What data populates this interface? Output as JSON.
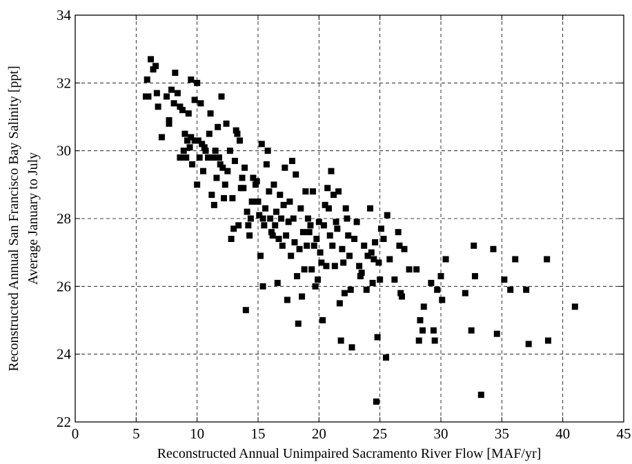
{
  "chart_data": {
    "type": "scatter",
    "title": "",
    "xlabel": "Reconstructed Annual Unimpaired Sacramento River Flow [MAF/yr]",
    "ylabel": "Reconstructed Annual San Francisco Bay Salinity [ppt]",
    "ylabel2": "Average January to July",
    "xlim": [
      0,
      45
    ],
    "ylim": [
      22,
      34
    ],
    "xticks": [
      0,
      5,
      10,
      15,
      20,
      25,
      30,
      35,
      40,
      45
    ],
    "yticks": [
      22,
      24,
      26,
      28,
      30,
      32,
      34
    ],
    "xtick_labels": [
      "0",
      "5",
      "10",
      "15",
      "20",
      "25",
      "30",
      "35",
      "40",
      "45"
    ],
    "ytick_labels": [
      "22",
      "24",
      "26",
      "28",
      "30",
      "32",
      "34"
    ],
    "grid": true,
    "marker": "square",
    "marker_color": "#000000",
    "series": [
      {
        "points": [
          [
            5.8,
            31.6
          ],
          [
            6.0,
            31.6
          ],
          [
            5.9,
            32.1
          ],
          [
            6.2,
            32.7
          ],
          [
            6.4,
            32.4
          ],
          [
            6.6,
            32.5
          ],
          [
            6.7,
            31.7
          ],
          [
            6.8,
            31.3
          ],
          [
            7.1,
            30.4
          ],
          [
            7.5,
            31.6
          ],
          [
            7.7,
            30.9
          ],
          [
            7.7,
            30.8
          ],
          [
            7.9,
            31.8
          ],
          [
            8.1,
            31.4
          ],
          [
            8.2,
            32.3
          ],
          [
            8.4,
            31.7
          ],
          [
            8.6,
            31.3
          ],
          [
            8.6,
            29.8
          ],
          [
            8.8,
            31.2
          ],
          [
            8.9,
            30.0
          ],
          [
            9.0,
            30.5
          ],
          [
            9.1,
            29.8
          ],
          [
            9.2,
            30.3
          ],
          [
            9.3,
            31.1
          ],
          [
            9.4,
            30.1
          ],
          [
            9.5,
            30.4
          ],
          [
            9.5,
            32.1
          ],
          [
            9.6,
            29.6
          ],
          [
            9.8,
            30.3
          ],
          [
            9.8,
            31.5
          ],
          [
            10.0,
            32.0
          ],
          [
            10.0,
            29.0
          ],
          [
            10.1,
            30.3
          ],
          [
            10.2,
            29.8
          ],
          [
            10.3,
            31.4
          ],
          [
            10.4,
            30.2
          ],
          [
            10.5,
            29.4
          ],
          [
            10.6,
            30.1
          ],
          [
            10.7,
            30.0
          ],
          [
            10.9,
            29.8
          ],
          [
            11.0,
            30.5
          ],
          [
            11.1,
            31.1
          ],
          [
            11.2,
            28.7
          ],
          [
            11.3,
            29.8
          ],
          [
            11.4,
            28.4
          ],
          [
            11.5,
            30.0
          ],
          [
            11.6,
            29.2
          ],
          [
            11.7,
            30.7
          ],
          [
            11.8,
            29.8
          ],
          [
            11.9,
            29.6
          ],
          [
            12.0,
            31.6
          ],
          [
            12.1,
            29.5
          ],
          [
            12.2,
            28.6
          ],
          [
            12.3,
            29.0
          ],
          [
            12.4,
            30.8
          ],
          [
            12.5,
            29.4
          ],
          [
            12.7,
            30.0
          ],
          [
            12.8,
            27.4
          ],
          [
            12.9,
            28.6
          ],
          [
            13.0,
            27.7
          ],
          [
            13.1,
            29.7
          ],
          [
            13.2,
            30.6
          ],
          [
            13.3,
            30.5
          ],
          [
            13.4,
            27.8
          ],
          [
            13.5,
            30.3
          ],
          [
            13.6,
            28.9
          ],
          [
            13.7,
            29.2
          ],
          [
            13.8,
            28.9
          ],
          [
            13.9,
            29.5
          ],
          [
            14.0,
            25.3
          ],
          [
            14.1,
            28.2
          ],
          [
            14.2,
            27.8
          ],
          [
            14.3,
            27.5
          ],
          [
            14.4,
            28.0
          ],
          [
            14.5,
            28.5
          ],
          [
            14.6,
            29.2
          ],
          [
            14.8,
            29.0
          ],
          [
            14.9,
            29.1
          ],
          [
            15.0,
            28.5
          ],
          [
            15.1,
            28.1
          ],
          [
            15.2,
            26.9
          ],
          [
            15.3,
            30.2
          ],
          [
            15.4,
            26.0
          ],
          [
            15.4,
            28.0
          ],
          [
            15.5,
            27.8
          ],
          [
            15.6,
            28.3
          ],
          [
            15.7,
            29.6
          ],
          [
            15.8,
            30.0
          ],
          [
            15.9,
            28.8
          ],
          [
            16.0,
            28.0
          ],
          [
            16.1,
            27.6
          ],
          [
            16.2,
            27.5
          ],
          [
            16.3,
            29.0
          ],
          [
            16.4,
            27.8
          ],
          [
            16.5,
            28.2
          ],
          [
            16.6,
            26.1
          ],
          [
            16.7,
            27.4
          ],
          [
            16.8,
            28.7
          ],
          [
            16.9,
            28.0
          ],
          [
            17.0,
            27.2
          ],
          [
            17.1,
            28.4
          ],
          [
            17.2,
            29.5
          ],
          [
            17.3,
            27.5
          ],
          [
            17.4,
            25.6
          ],
          [
            17.5,
            27.9
          ],
          [
            17.6,
            28.5
          ],
          [
            17.7,
            26.9
          ],
          [
            17.8,
            29.7
          ],
          [
            17.9,
            28.0
          ],
          [
            18.0,
            27.3
          ],
          [
            18.1,
            29.3
          ],
          [
            18.2,
            26.3
          ],
          [
            18.3,
            24.9
          ],
          [
            18.4,
            27.1
          ],
          [
            18.5,
            28.3
          ],
          [
            18.6,
            25.7
          ],
          [
            18.7,
            27.6
          ],
          [
            18.8,
            26.5
          ],
          [
            18.9,
            28.8
          ],
          [
            19.0,
            27.2
          ],
          [
            19.1,
            28.0
          ],
          [
            19.2,
            27.6
          ],
          [
            19.3,
            27.8
          ],
          [
            19.4,
            26.5
          ],
          [
            19.5,
            28.8
          ],
          [
            19.6,
            27.2
          ],
          [
            19.7,
            26.0
          ],
          [
            19.8,
            27.4
          ],
          [
            19.9,
            26.2
          ],
          [
            20.0,
            27.9
          ],
          [
            20.1,
            27.0
          ],
          [
            20.2,
            26.7
          ],
          [
            20.3,
            25.0
          ],
          [
            20.4,
            27.8
          ],
          [
            20.5,
            28.4
          ],
          [
            20.6,
            26.6
          ],
          [
            20.7,
            28.9
          ],
          [
            20.8,
            28.3
          ],
          [
            20.9,
            27.5
          ],
          [
            21.0,
            29.4
          ],
          [
            21.1,
            27.2
          ],
          [
            21.2,
            28.7
          ],
          [
            21.3,
            26.6
          ],
          [
            21.4,
            27.9
          ],
          [
            21.5,
            27.7
          ],
          [
            21.6,
            28.8
          ],
          [
            21.7,
            25.5
          ],
          [
            21.8,
            24.4
          ],
          [
            21.9,
            27.1
          ],
          [
            22.0,
            26.7
          ],
          [
            22.1,
            25.8
          ],
          [
            22.2,
            28.3
          ],
          [
            22.3,
            28.0
          ],
          [
            22.4,
            27.5
          ],
          [
            22.5,
            26.9
          ],
          [
            22.6,
            25.9
          ],
          [
            22.7,
            24.2
          ],
          [
            22.9,
            27.4
          ],
          [
            23.1,
            27.9
          ],
          [
            23.3,
            26.6
          ],
          [
            23.4,
            26.3
          ],
          [
            23.5,
            26.4
          ],
          [
            23.7,
            27.2
          ],
          [
            23.9,
            25.9
          ],
          [
            24.0,
            26.9
          ],
          [
            24.2,
            28.3
          ],
          [
            24.3,
            27.0
          ],
          [
            24.4,
            26.1
          ],
          [
            24.5,
            26.8
          ],
          [
            24.6,
            27.3
          ],
          [
            24.7,
            22.6
          ],
          [
            24.8,
            24.5
          ],
          [
            24.9,
            26.7
          ],
          [
            25.0,
            26.2
          ],
          [
            25.1,
            27.7
          ],
          [
            25.3,
            27.4
          ],
          [
            25.5,
            23.9
          ],
          [
            25.6,
            28.1
          ],
          [
            25.8,
            26.8
          ],
          [
            26.2,
            26.2
          ],
          [
            26.5,
            27.6
          ],
          [
            26.6,
            27.2
          ],
          [
            26.7,
            25.8
          ],
          [
            26.8,
            25.7
          ],
          [
            27.0,
            27.1
          ],
          [
            27.4,
            26.5
          ],
          [
            28.0,
            26.5
          ],
          [
            28.2,
            24.4
          ],
          [
            28.3,
            25.0
          ],
          [
            28.5,
            24.7
          ],
          [
            28.6,
            25.4
          ],
          [
            29.2,
            26.1
          ],
          [
            29.4,
            24.7
          ],
          [
            29.5,
            24.4
          ],
          [
            29.7,
            25.9
          ],
          [
            30.0,
            26.3
          ],
          [
            30.1,
            25.6
          ],
          [
            30.4,
            26.8
          ],
          [
            32.0,
            25.8
          ],
          [
            32.5,
            24.7
          ],
          [
            32.7,
            27.2
          ],
          [
            32.8,
            26.3
          ],
          [
            33.3,
            22.8
          ],
          [
            34.3,
            27.1
          ],
          [
            34.6,
            24.6
          ],
          [
            35.2,
            26.2
          ],
          [
            35.7,
            25.9
          ],
          [
            36.1,
            26.8
          ],
          [
            37.0,
            25.9
          ],
          [
            37.2,
            24.3
          ],
          [
            38.7,
            26.8
          ],
          [
            38.8,
            24.4
          ],
          [
            41.0,
            25.4
          ]
        ]
      }
    ]
  }
}
